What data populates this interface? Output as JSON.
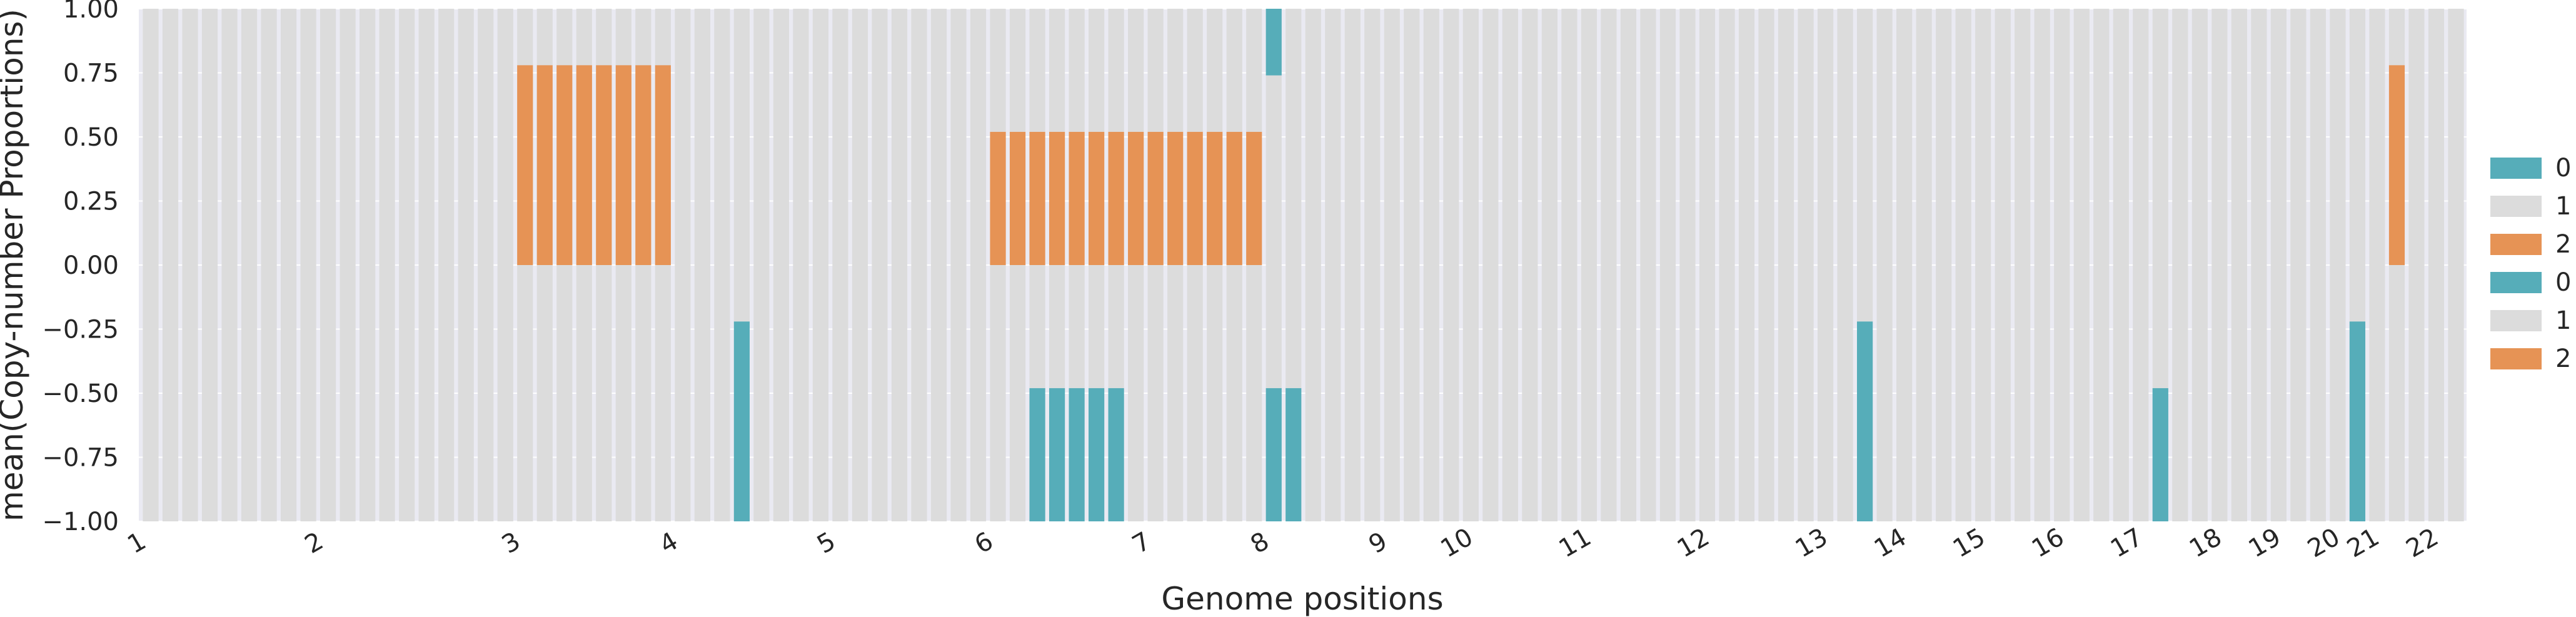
{
  "chart_data": {
    "type": "bar",
    "stacked": true,
    "n_bins": 118,
    "xlabel": "Genome positions",
    "ylabel": "mean(Copy-number Proportions)",
    "ylim": [
      -1.0,
      1.0
    ],
    "yticks": [
      "−1.00",
      "−0.75",
      "−0.50",
      "−0.25",
      "0.00",
      "0.25",
      "0.50",
      "0.75",
      "1.00"
    ],
    "chromosome_ticks": [
      {
        "label": "1",
        "bin": 0
      },
      {
        "label": "2",
        "bin": 9
      },
      {
        "label": "3",
        "bin": 19
      },
      {
        "label": "4",
        "bin": 27
      },
      {
        "label": "5",
        "bin": 35
      },
      {
        "label": "6",
        "bin": 43
      },
      {
        "label": "7",
        "bin": 51
      },
      {
        "label": "8",
        "bin": 57
      },
      {
        "label": "9",
        "bin": 63
      },
      {
        "label": "10",
        "bin": 67
      },
      {
        "label": "11",
        "bin": 73
      },
      {
        "label": "12",
        "bin": 79
      },
      {
        "label": "13",
        "bin": 85
      },
      {
        "label": "14",
        "bin": 89
      },
      {
        "label": "15",
        "bin": 93
      },
      {
        "label": "16",
        "bin": 97
      },
      {
        "label": "17",
        "bin": 101
      },
      {
        "label": "18",
        "bin": 105
      },
      {
        "label": "19",
        "bin": 108
      },
      {
        "label": "20",
        "bin": 111
      },
      {
        "label": "21",
        "bin": 113
      },
      {
        "label": "22",
        "bin": 116
      }
    ],
    "colors": {
      "0": "#56adb9",
      "1": "#dcdcdc",
      "2": "#e69355"
    },
    "legend": {
      "placement": "right",
      "entries": [
        {
          "label": "0",
          "color": "#56adb9"
        },
        {
          "label": "1",
          "color": "#dcdcdc"
        },
        {
          "label": "2",
          "color": "#e69355"
        },
        {
          "label": "0",
          "color": "#56adb9"
        },
        {
          "label": "1",
          "color": "#dcdcdc"
        },
        {
          "label": "2",
          "color": "#e69355"
        }
      ]
    },
    "top_series": {
      "default": {
        "0": 0,
        "1": 1.0,
        "2": 0
      },
      "overrides": [
        {
          "bins": [
            19,
            20,
            21,
            22,
            23,
            24,
            25,
            26
          ],
          "0": 0,
          "1": 0.22,
          "2": 0.78
        },
        {
          "bins": [
            43,
            44,
            45,
            46,
            47,
            48,
            49,
            50,
            51,
            52,
            53,
            54,
            55,
            56
          ],
          "0": 0,
          "1": 0.48,
          "2": 0.52
        },
        {
          "bins": [
            57
          ],
          "0": 0.26,
          "1": 0.74,
          "2": 0
        },
        {
          "bins": [
            114
          ],
          "0": 0,
          "1": 0.22,
          "2": 0.78
        }
      ]
    },
    "bottom_series": {
      "default": {
        "0": 0,
        "1": 1.0,
        "2": 0
      },
      "overrides": [
        {
          "bins": [
            30
          ],
          "0": 0.78,
          "1": 0.22,
          "2": 0
        },
        {
          "bins": [
            45,
            46,
            47,
            48,
            49
          ],
          "0": 0.52,
          "1": 0.48,
          "2": 0
        },
        {
          "bins": [
            57,
            58
          ],
          "0": 0.52,
          "1": 0.48,
          "2": 0
        },
        {
          "bins": [
            87
          ],
          "0": 0.78,
          "1": 0.22,
          "2": 0
        },
        {
          "bins": [
            102
          ],
          "0": 0.52,
          "1": 0.48,
          "2": 0
        },
        {
          "bins": [
            112
          ],
          "0": 0.78,
          "1": 0.22,
          "2": 0
        }
      ]
    }
  }
}
